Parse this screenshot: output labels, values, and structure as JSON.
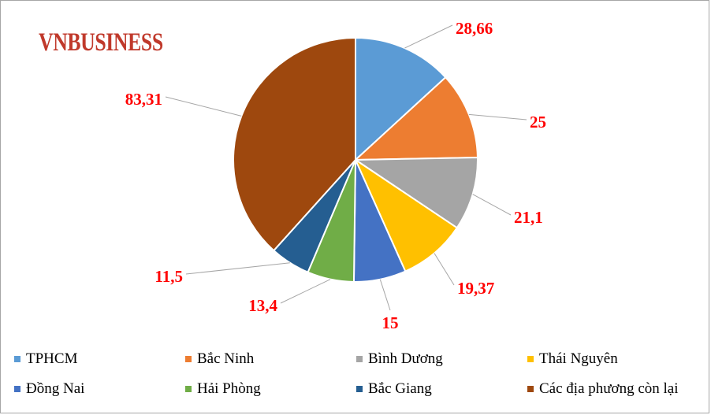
{
  "logo_text": "VNBUSINESS",
  "chart_data": {
    "type": "pie",
    "title": "",
    "categories": [
      "TPHCM",
      "Bắc Ninh",
      "Bình Dương",
      "Thái Nguyên",
      "Đồng Nai",
      "Hải Phòng",
      "Bắc Giang",
      "Các địa phương còn lại"
    ],
    "values": [
      28.66,
      25,
      21.1,
      19.37,
      15,
      13.4,
      11.5,
      83.31
    ],
    "value_labels": [
      "28,66",
      "25",
      "21,1",
      "19,37",
      "15",
      "13,4",
      "11,5",
      "83,31"
    ],
    "colors": [
      "#5b9bd5",
      "#ed7d31",
      "#a5a5a5",
      "#ffc000",
      "#4472c4",
      "#70ad47",
      "#255e91",
      "#9e480e"
    ],
    "label_color": "#ff0000",
    "legend_position": "bottom"
  }
}
